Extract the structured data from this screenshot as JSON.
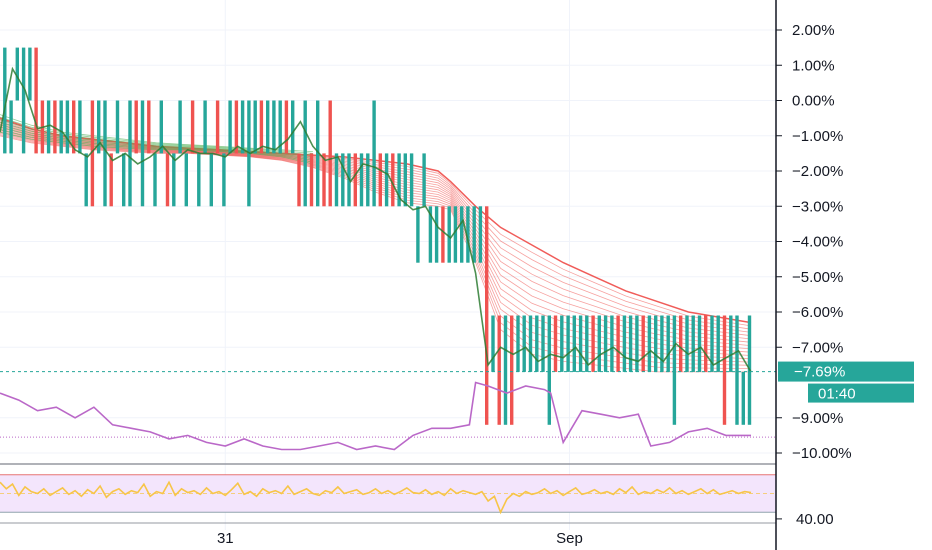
{
  "chart_data": [
    {
      "type": "candlestick",
      "name": "main-price-pane",
      "ylim": [
        -10.0,
        2.0
      ],
      "y_ticks": [
        "2.00%",
        "1.00%",
        "0.00%",
        "−1.00%",
        "−2.00%",
        "−3.00%",
        "−4.00%",
        "−5.00%",
        "−6.00%",
        "−7.00%",
        "−9.00%",
        "−10.00%"
      ],
      "y_tick_values": [
        2,
        1,
        0,
        -1,
        -2,
        -3,
        -4,
        -5,
        -6,
        -7,
        -9,
        -10
      ],
      "x_ticks": [
        "31",
        "Sep"
      ],
      "x_tick_positions": [
        36,
        91
      ],
      "x_range": [
        0,
        124
      ],
      "last_value_label": "−7.69%",
      "last_value": -7.69,
      "countdown_label": "01:40",
      "candle_color_up": "#26a69a",
      "candle_color_down": "#ef5350",
      "ribbon_color_bull": "#4caf50",
      "ribbon_color_bear": "#ef5350",
      "line_series_color": "#ba68c8",
      "last_price_line_color": "#26a69a",
      "indicator_line_level": -9.55,
      "candle_levels": [
        0.0,
        -1.5,
        -3.0,
        -4.6,
        -6.1,
        -7.7,
        -9.2
      ],
      "candles": [
        [
          -1.5,
          1.5,
          "up"
        ],
        [
          -1.5,
          0.0,
          "up"
        ],
        [
          0.0,
          1.5,
          "up"
        ],
        [
          -1.5,
          1.5,
          "up"
        ],
        [
          0.0,
          1.5,
          "up"
        ],
        [
          -1.5,
          1.5,
          "down"
        ],
        [
          -1.5,
          0.0,
          "down"
        ],
        [
          -1.5,
          0.0,
          "up"
        ],
        [
          -1.5,
          0.0,
          "down"
        ],
        [
          -1.5,
          0.0,
          "up"
        ],
        [
          -1.5,
          0.0,
          "up"
        ],
        [
          -1.5,
          0.0,
          "down"
        ],
        [
          -1.5,
          0.0,
          "up"
        ],
        [
          -3.0,
          -1.5,
          "up"
        ],
        [
          -3.0,
          0.0,
          "down"
        ],
        [
          -1.5,
          0.0,
          "up"
        ],
        [
          -3.0,
          0.0,
          "up"
        ],
        [
          -3.0,
          -1.5,
          "down"
        ],
        [
          -1.5,
          0.0,
          "up"
        ],
        [
          -3.0,
          -1.5,
          "up"
        ],
        [
          -3.0,
          0.0,
          "up"
        ],
        [
          -1.5,
          0.0,
          "down"
        ],
        [
          -3.0,
          0.0,
          "up"
        ],
        [
          -1.5,
          0.0,
          "down"
        ],
        [
          -3.0,
          -1.5,
          "up"
        ],
        [
          -1.5,
          0.0,
          "up"
        ],
        [
          -3.0,
          -1.5,
          "down"
        ],
        [
          -3.0,
          -1.5,
          "up"
        ],
        [
          -1.5,
          0.0,
          "up"
        ],
        [
          -3.0,
          -1.5,
          "up"
        ],
        [
          -1.5,
          0.0,
          "down"
        ],
        [
          -3.0,
          -1.5,
          "up"
        ],
        [
          -1.5,
          0.0,
          "up"
        ],
        [
          -3.0,
          -1.5,
          "up"
        ],
        [
          -1.5,
          0.0,
          "down"
        ],
        [
          -3.0,
          -1.5,
          "up"
        ],
        [
          -1.5,
          0.0,
          "up"
        ],
        [
          -1.5,
          0.0,
          "down"
        ],
        [
          -1.5,
          0.0,
          "up"
        ],
        [
          -3.0,
          0.0,
          "up"
        ],
        [
          -1.5,
          0.0,
          "up"
        ],
        [
          -1.5,
          0.0,
          "down"
        ],
        [
          -1.5,
          0.0,
          "up"
        ],
        [
          -1.5,
          0.0,
          "up"
        ],
        [
          -1.5,
          0.0,
          "up"
        ],
        [
          -1.5,
          0.0,
          "down"
        ],
        [
          -1.5,
          0.0,
          "up"
        ],
        [
          -3.0,
          -1.5,
          "down"
        ],
        [
          -3.0,
          0.0,
          "up"
        ],
        [
          -3.0,
          -1.5,
          "down"
        ],
        [
          -3.0,
          0.0,
          "up"
        ],
        [
          -3.0,
          -1.5,
          "down"
        ],
        [
          -3.0,
          0.0,
          "down"
        ],
        [
          -3.0,
          -1.5,
          "up"
        ],
        [
          -3.0,
          -1.5,
          "up"
        ],
        [
          -3.0,
          -1.5,
          "up"
        ],
        [
          -3.0,
          -1.5,
          "down"
        ],
        [
          -3.0,
          -1.5,
          "up"
        ],
        [
          -3.0,
          -1.5,
          "up"
        ],
        [
          -3.0,
          0.0,
          "up"
        ],
        [
          -3.0,
          -1.5,
          "down"
        ],
        [
          -3.0,
          -1.5,
          "up"
        ],
        [
          -3.0,
          -1.5,
          "down"
        ],
        [
          -3.0,
          -1.5,
          "up"
        ],
        [
          -3.0,
          -1.5,
          "up"
        ],
        [
          -3.0,
          -1.5,
          "up"
        ],
        [
          -4.6,
          -3.0,
          "up"
        ],
        [
          -3.0,
          -1.5,
          "up"
        ],
        [
          -4.6,
          -3.0,
          "up"
        ],
        [
          -4.6,
          -3.0,
          "up"
        ],
        [
          -4.6,
          -3.0,
          "down"
        ],
        [
          -4.6,
          -3.0,
          "up"
        ],
        [
          -4.6,
          -3.0,
          "up"
        ],
        [
          -4.6,
          -3.0,
          "up"
        ],
        [
          -4.6,
          -3.0,
          "up"
        ],
        [
          -4.6,
          -3.0,
          "up"
        ],
        [
          -4.6,
          -3.0,
          "up"
        ],
        [
          -9.2,
          -3.0,
          "down"
        ],
        [
          -7.7,
          -6.1,
          "up"
        ],
        [
          -9.2,
          -6.1,
          "down"
        ],
        [
          -9.2,
          -6.1,
          "up"
        ],
        [
          -9.2,
          -6.1,
          "down"
        ],
        [
          -7.7,
          -6.1,
          "up"
        ],
        [
          -7.7,
          -6.1,
          "up"
        ],
        [
          -7.7,
          -6.1,
          "up"
        ],
        [
          -7.7,
          -6.1,
          "up"
        ],
        [
          -7.7,
          -6.1,
          "up"
        ],
        [
          -9.2,
          -6.1,
          "up"
        ],
        [
          -7.7,
          -6.1,
          "down"
        ],
        [
          -7.7,
          -6.1,
          "up"
        ],
        [
          -7.7,
          -6.1,
          "up"
        ],
        [
          -7.7,
          -6.1,
          "up"
        ],
        [
          -7.7,
          -6.1,
          "up"
        ],
        [
          -7.7,
          -6.1,
          "up"
        ],
        [
          -7.7,
          -6.1,
          "down"
        ],
        [
          -7.7,
          -6.1,
          "up"
        ],
        [
          -7.7,
          -6.1,
          "up"
        ],
        [
          -7.7,
          -6.1,
          "up"
        ],
        [
          -7.7,
          -6.1,
          "down"
        ],
        [
          -7.7,
          -6.1,
          "up"
        ],
        [
          -7.7,
          -6.1,
          "up"
        ],
        [
          -7.7,
          -6.1,
          "up"
        ],
        [
          -7.7,
          -6.1,
          "down"
        ],
        [
          -7.7,
          -6.1,
          "up"
        ],
        [
          -7.7,
          -6.1,
          "up"
        ],
        [
          -7.7,
          -6.1,
          "up"
        ],
        [
          -7.7,
          -6.1,
          "up"
        ],
        [
          -9.2,
          -6.1,
          "up"
        ],
        [
          -7.7,
          -6.1,
          "down"
        ],
        [
          -7.7,
          -6.1,
          "up"
        ],
        [
          -7.7,
          -6.1,
          "up"
        ],
        [
          -7.7,
          -6.1,
          "up"
        ],
        [
          -7.7,
          -6.1,
          "down"
        ],
        [
          -7.7,
          -6.1,
          "up"
        ],
        [
          -7.7,
          -6.1,
          "up"
        ],
        [
          -9.2,
          -6.1,
          "down"
        ],
        [
          -7.7,
          -6.1,
          "up"
        ],
        [
          -9.2,
          -6.1,
          "up"
        ],
        [
          -9.2,
          -7.7,
          "up"
        ],
        [
          -9.2,
          -6.1,
          "up"
        ]
      ],
      "price_line_x": [
        0,
        2,
        4,
        6,
        8,
        10,
        12,
        14,
        16,
        18,
        20,
        22,
        24,
        26,
        28,
        30,
        32,
        34,
        36,
        38,
        40,
        42,
        44,
        46,
        48,
        50,
        52,
        54,
        56,
        58,
        60,
        62,
        64,
        66,
        68,
        70,
        72,
        74,
        76,
        78,
        80,
        82,
        84,
        86,
        88,
        90,
        92,
        94,
        96,
        98,
        100,
        102,
        104,
        106,
        108,
        110,
        112,
        114,
        116,
        118,
        120
      ],
      "price_line_y": [
        -0.9,
        0.9,
        0.3,
        -0.8,
        -0.7,
        -0.9,
        -1.4,
        -1.6,
        -1.2,
        -1.7,
        -1.5,
        -1.8,
        -1.6,
        -1.3,
        -1.7,
        -1.4,
        -1.5,
        -1.5,
        -1.6,
        -1.3,
        -1.5,
        -1.3,
        -1.4,
        -1.1,
        -0.6,
        -1.3,
        -1.7,
        -1.6,
        -2.3,
        -1.8,
        -1.9,
        -2.1,
        -2.8,
        -3.1,
        -3.0,
        -3.6,
        -3.9,
        -3.4,
        -4.9,
        -7.5,
        -7.0,
        -7.2,
        -7.0,
        -7.4,
        -7.2,
        -7.3,
        -7.0,
        -7.5,
        -7.2,
        -7.0,
        -7.3,
        -7.4,
        -7.1,
        -7.4,
        -6.9,
        -7.2,
        -7.0,
        -7.5,
        -7.3,
        -7.1,
        -7.7
      ],
      "ribbon_top": [
        -0.5,
        -0.8,
        -1.0,
        -1.1,
        -1.2,
        -1.3,
        -1.35,
        -1.4,
        -1.45,
        -1.5,
        -1.55,
        -1.6,
        -1.7,
        -1.8,
        -2.0,
        -2.3,
        -3.0,
        -3.6,
        -4.1,
        -4.6,
        -5.0,
        -5.4,
        -5.7,
        -6.0,
        -6.3
      ],
      "ribbon_bottom": [
        -1.0,
        -1.2,
        -1.3,
        -1.4,
        -1.45,
        -1.5,
        -1.5,
        -1.55,
        -1.6,
        -1.7,
        -1.9,
        -2.2,
        -2.6,
        -2.9,
        -3.0,
        -3.1,
        -4.6,
        -6.5,
        -7.2,
        -7.4,
        -7.5,
        -7.6,
        -7.7,
        -7.7,
        -7.7
      ],
      "ribbon_x": [
        0,
        5,
        10,
        15,
        20,
        25,
        30,
        35,
        40,
        45,
        50,
        55,
        60,
        65,
        70,
        72,
        76,
        80,
        85,
        90,
        95,
        100,
        105,
        110,
        120
      ],
      "overlay_x": [
        0,
        3,
        6,
        9,
        12,
        15,
        18,
        21,
        24,
        27,
        30,
        33,
        36,
        39,
        42,
        45,
        48,
        51,
        54,
        57,
        60,
        63,
        66,
        69,
        72,
        75,
        76,
        78,
        81,
        84,
        87,
        88,
        90,
        93,
        96,
        99,
        102,
        104,
        107,
        110,
        113,
        116,
        120
      ],
      "overlay_y": [
        -8.3,
        -8.5,
        -8.8,
        -8.7,
        -9.0,
        -8.7,
        -9.2,
        -9.3,
        -9.4,
        -9.6,
        -9.5,
        -9.7,
        -9.8,
        -9.6,
        -9.8,
        -9.9,
        -9.9,
        -9.8,
        -9.7,
        -9.9,
        -9.8,
        -9.9,
        -9.5,
        -9.3,
        -9.3,
        -9.2,
        -8.0,
        -8.1,
        -8.3,
        -8.1,
        -8.2,
        -8.3,
        -9.7,
        -8.8,
        -8.9,
        -9.0,
        -8.9,
        -9.8,
        -9.7,
        -9.4,
        -9.3,
        -9.5,
        -9.5
      ]
    },
    {
      "type": "line",
      "name": "rsi-oscillator-pane",
      "y_ticks": [
        "40.00"
      ],
      "y_tick_values": [
        40
      ],
      "ylim": [
        25,
        75
      ],
      "band_upper": 70,
      "band_lower": 30,
      "midline": 50,
      "line_color": "#f7c548",
      "band_color": "#f3e5fc",
      "values": [
        62,
        55,
        60,
        48,
        57,
        52,
        50,
        55,
        48,
        52,
        56,
        49,
        53,
        47,
        54,
        50,
        58,
        46,
        52,
        55,
        49,
        53,
        51,
        60,
        47,
        52,
        50,
        62,
        48,
        55,
        51,
        53,
        49,
        56,
        50,
        52,
        48,
        54,
        61,
        49,
        52,
        47,
        55,
        51,
        53,
        50,
        58,
        49,
        52,
        55,
        50,
        48,
        53,
        51,
        57,
        50,
        52,
        54,
        49,
        51,
        55,
        50,
        53,
        49,
        52,
        56,
        51,
        50,
        54,
        49,
        52,
        48,
        55,
        50,
        53,
        51,
        49,
        52,
        42,
        47,
        30,
        44,
        50,
        47,
        52,
        49,
        51,
        55,
        50,
        53,
        48,
        52,
        56,
        49,
        51,
        54,
        50,
        52,
        49,
        55,
        51,
        57,
        49,
        52,
        50,
        54,
        51,
        56,
        50,
        53,
        49,
        52,
        55,
        50,
        54,
        49,
        51,
        53,
        50,
        52,
        51
      ]
    }
  ]
}
